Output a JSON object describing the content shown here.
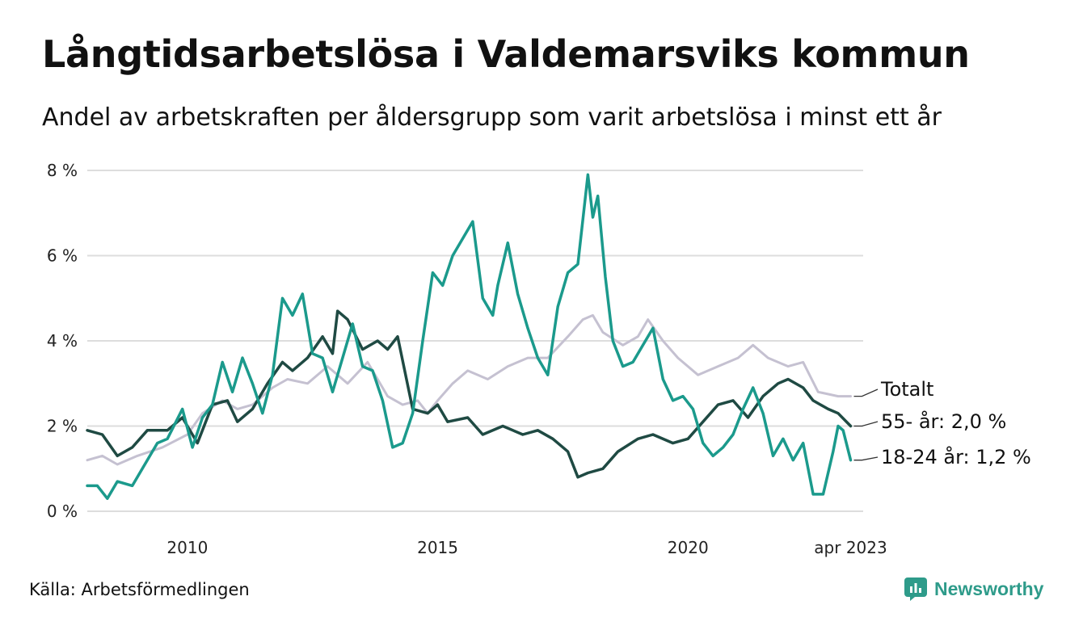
{
  "title": "Långtidsarbetslösa i Valdemarsviks kommun",
  "subtitle": "Andel av arbetskraften per åldersgrupp som varit arbetslösa i minst ett år",
  "source": "Källa: Arbetsförmedlingen",
  "brand": "Newsworthy",
  "colors": {
    "totalt": "#c5c1d1",
    "age55": "#1f4a43",
    "age1824": "#1b9a8c",
    "grid": "#dddddd",
    "brand": "#2e9b8a"
  },
  "chart_data": {
    "type": "line",
    "title": "Långtidsarbetslösa i Valdemarsviks kommun",
    "xlabel": "",
    "ylabel": "",
    "ylim": [
      0,
      8
    ],
    "xlim": [
      2008.0,
      2023.5
    ],
    "y_ticks": [
      {
        "value": 0,
        "label": "0 %"
      },
      {
        "value": 2,
        "label": "2 %"
      },
      {
        "value": 4,
        "label": "4 %"
      },
      {
        "value": 6,
        "label": "6 %"
      },
      {
        "value": 8,
        "label": "8 %"
      }
    ],
    "x_ticks": [
      {
        "value": 2010,
        "label": "2010"
      },
      {
        "value": 2015,
        "label": "2015"
      },
      {
        "value": 2020,
        "label": "2020"
      },
      {
        "value": 2023.25,
        "label": "apr 2023"
      }
    ],
    "series": [
      {
        "key": "totalt",
        "name": "Totalt",
        "end_label": "Totalt",
        "points": [
          [
            2008.0,
            1.2
          ],
          [
            2008.3,
            1.3
          ],
          [
            2008.6,
            1.1
          ],
          [
            2009.0,
            1.3
          ],
          [
            2009.5,
            1.5
          ],
          [
            2010.0,
            1.8
          ],
          [
            2010.3,
            2.3
          ],
          [
            2010.7,
            2.6
          ],
          [
            2011.0,
            2.4
          ],
          [
            2011.3,
            2.5
          ],
          [
            2011.7,
            2.9
          ],
          [
            2012.0,
            3.1
          ],
          [
            2012.4,
            3.0
          ],
          [
            2012.8,
            3.4
          ],
          [
            2013.2,
            3.0
          ],
          [
            2013.6,
            3.5
          ],
          [
            2014.0,
            2.7
          ],
          [
            2014.3,
            2.5
          ],
          [
            2014.6,
            2.6
          ],
          [
            2014.8,
            2.3
          ],
          [
            2015.0,
            2.6
          ],
          [
            2015.3,
            3.0
          ],
          [
            2015.6,
            3.3
          ],
          [
            2016.0,
            3.1
          ],
          [
            2016.4,
            3.4
          ],
          [
            2016.8,
            3.6
          ],
          [
            2017.2,
            3.6
          ],
          [
            2017.6,
            4.1
          ],
          [
            2017.9,
            4.5
          ],
          [
            2018.1,
            4.6
          ],
          [
            2018.3,
            4.2
          ],
          [
            2018.7,
            3.9
          ],
          [
            2019.0,
            4.1
          ],
          [
            2019.2,
            4.5
          ],
          [
            2019.5,
            4.0
          ],
          [
            2019.8,
            3.6
          ],
          [
            2020.2,
            3.2
          ],
          [
            2020.6,
            3.4
          ],
          [
            2021.0,
            3.6
          ],
          [
            2021.3,
            3.9
          ],
          [
            2021.6,
            3.6
          ],
          [
            2022.0,
            3.4
          ],
          [
            2022.3,
            3.5
          ],
          [
            2022.6,
            2.8
          ],
          [
            2023.0,
            2.7
          ],
          [
            2023.25,
            2.7
          ]
        ]
      },
      {
        "key": "age55",
        "name": "55- år",
        "end_label": "55- år: 2,0 %",
        "points": [
          [
            2008.0,
            1.9
          ],
          [
            2008.3,
            1.8
          ],
          [
            2008.6,
            1.3
          ],
          [
            2008.9,
            1.5
          ],
          [
            2009.2,
            1.9
          ],
          [
            2009.6,
            1.9
          ],
          [
            2009.9,
            2.2
          ],
          [
            2010.2,
            1.6
          ],
          [
            2010.5,
            2.5
          ],
          [
            2010.8,
            2.6
          ],
          [
            2011.0,
            2.1
          ],
          [
            2011.3,
            2.4
          ],
          [
            2011.6,
            3.0
          ],
          [
            2011.9,
            3.5
          ],
          [
            2012.1,
            3.3
          ],
          [
            2012.4,
            3.6
          ],
          [
            2012.7,
            4.1
          ],
          [
            2012.9,
            3.7
          ],
          [
            2013.0,
            4.7
          ],
          [
            2013.2,
            4.5
          ],
          [
            2013.5,
            3.8
          ],
          [
            2013.8,
            4.0
          ],
          [
            2014.0,
            3.8
          ],
          [
            2014.2,
            4.1
          ],
          [
            2014.5,
            2.4
          ],
          [
            2014.8,
            2.3
          ],
          [
            2015.0,
            2.5
          ],
          [
            2015.2,
            2.1
          ],
          [
            2015.6,
            2.2
          ],
          [
            2015.9,
            1.8
          ],
          [
            2016.3,
            2.0
          ],
          [
            2016.7,
            1.8
          ],
          [
            2017.0,
            1.9
          ],
          [
            2017.3,
            1.7
          ],
          [
            2017.6,
            1.4
          ],
          [
            2017.8,
            0.8
          ],
          [
            2018.0,
            0.9
          ],
          [
            2018.3,
            1.0
          ],
          [
            2018.6,
            1.4
          ],
          [
            2019.0,
            1.7
          ],
          [
            2019.3,
            1.8
          ],
          [
            2019.7,
            1.6
          ],
          [
            2020.0,
            1.7
          ],
          [
            2020.3,
            2.1
          ],
          [
            2020.6,
            2.5
          ],
          [
            2020.9,
            2.6
          ],
          [
            2021.2,
            2.2
          ],
          [
            2021.5,
            2.7
          ],
          [
            2021.8,
            3.0
          ],
          [
            2022.0,
            3.1
          ],
          [
            2022.3,
            2.9
          ],
          [
            2022.5,
            2.6
          ],
          [
            2022.8,
            2.4
          ],
          [
            2023.0,
            2.3
          ],
          [
            2023.25,
            2.0
          ]
        ]
      },
      {
        "key": "age1824",
        "name": "18-24 år",
        "end_label": "18-24 år: 1,2 %",
        "points": [
          [
            2008.0,
            0.6
          ],
          [
            2008.2,
            0.6
          ],
          [
            2008.4,
            0.3
          ],
          [
            2008.6,
            0.7
          ],
          [
            2008.9,
            0.6
          ],
          [
            2009.1,
            1.0
          ],
          [
            2009.4,
            1.6
          ],
          [
            2009.6,
            1.7
          ],
          [
            2009.9,
            2.4
          ],
          [
            2010.1,
            1.5
          ],
          [
            2010.3,
            2.2
          ],
          [
            2010.5,
            2.5
          ],
          [
            2010.7,
            3.5
          ],
          [
            2010.9,
            2.8
          ],
          [
            2011.1,
            3.6
          ],
          [
            2011.3,
            3.0
          ],
          [
            2011.5,
            2.3
          ],
          [
            2011.7,
            3.2
          ],
          [
            2011.9,
            5.0
          ],
          [
            2012.1,
            4.6
          ],
          [
            2012.3,
            5.1
          ],
          [
            2012.5,
            3.7
          ],
          [
            2012.7,
            3.6
          ],
          [
            2012.9,
            2.8
          ],
          [
            2013.1,
            3.6
          ],
          [
            2013.3,
            4.4
          ],
          [
            2013.5,
            3.4
          ],
          [
            2013.7,
            3.3
          ],
          [
            2013.9,
            2.6
          ],
          [
            2014.1,
            1.5
          ],
          [
            2014.3,
            1.6
          ],
          [
            2014.5,
            2.3
          ],
          [
            2014.7,
            4.0
          ],
          [
            2014.9,
            5.6
          ],
          [
            2015.1,
            5.3
          ],
          [
            2015.3,
            6.0
          ],
          [
            2015.5,
            6.4
          ],
          [
            2015.7,
            6.8
          ],
          [
            2015.9,
            5.0
          ],
          [
            2016.1,
            4.6
          ],
          [
            2016.2,
            5.3
          ],
          [
            2016.4,
            6.3
          ],
          [
            2016.6,
            5.1
          ],
          [
            2016.8,
            4.3
          ],
          [
            2017.0,
            3.6
          ],
          [
            2017.2,
            3.2
          ],
          [
            2017.4,
            4.8
          ],
          [
            2017.6,
            5.6
          ],
          [
            2017.8,
            5.8
          ],
          [
            2018.0,
            7.9
          ],
          [
            2018.1,
            6.9
          ],
          [
            2018.2,
            7.4
          ],
          [
            2018.35,
            5.5
          ],
          [
            2018.5,
            4.0
          ],
          [
            2018.7,
            3.4
          ],
          [
            2018.9,
            3.5
          ],
          [
            2019.1,
            3.9
          ],
          [
            2019.3,
            4.3
          ],
          [
            2019.5,
            3.1
          ],
          [
            2019.7,
            2.6
          ],
          [
            2019.9,
            2.7
          ],
          [
            2020.1,
            2.4
          ],
          [
            2020.3,
            1.6
          ],
          [
            2020.5,
            1.3
          ],
          [
            2020.7,
            1.5
          ],
          [
            2020.9,
            1.8
          ],
          [
            2021.1,
            2.4
          ],
          [
            2021.3,
            2.9
          ],
          [
            2021.5,
            2.3
          ],
          [
            2021.7,
            1.3
          ],
          [
            2021.9,
            1.7
          ],
          [
            2022.1,
            1.2
          ],
          [
            2022.3,
            1.6
          ],
          [
            2022.5,
            0.4
          ],
          [
            2022.7,
            0.4
          ],
          [
            2022.9,
            1.4
          ],
          [
            2023.0,
            2.0
          ],
          [
            2023.1,
            1.9
          ],
          [
            2023.25,
            1.2
          ]
        ]
      }
    ]
  }
}
